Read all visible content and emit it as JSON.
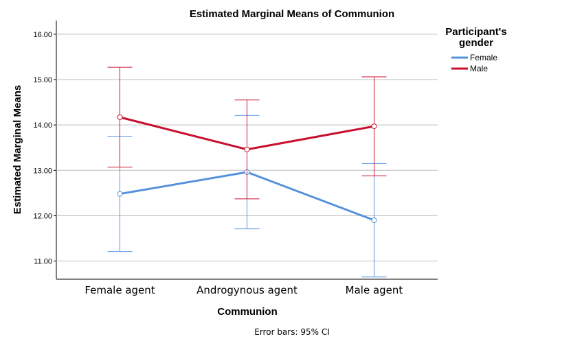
{
  "chart_data": {
    "type": "line",
    "title": "Estimated Marginal Means of Communion",
    "xlabel": "Communion",
    "ylabel": "Estimated Marginal Means",
    "categories": [
      "Female agent",
      "Androgynous agent",
      "Male agent"
    ],
    "ylim": [
      10.6,
      16.3
    ],
    "yticks": [
      "11.00",
      "12.00",
      "13.00",
      "14.00",
      "15.00",
      "16.00"
    ],
    "grid": "horizontal",
    "legend": {
      "title_line1": "Participant's",
      "title_line2": "gender",
      "placement": "right"
    },
    "series": [
      {
        "name": "Female",
        "color": "#5591dc",
        "values": [
          12.48,
          12.96,
          11.9
        ],
        "ci_low": [
          11.21,
          11.71,
          10.65
        ],
        "ci_high": [
          13.75,
          14.21,
          13.15
        ]
      },
      {
        "name": "Male",
        "color": "#c8102e",
        "values": [
          14.17,
          13.46,
          13.97
        ],
        "ci_low": [
          13.07,
          12.37,
          12.88
        ],
        "ci_high": [
          15.27,
          14.55,
          15.06
        ]
      }
    ],
    "footnote": "Error bars: 95% CI"
  }
}
